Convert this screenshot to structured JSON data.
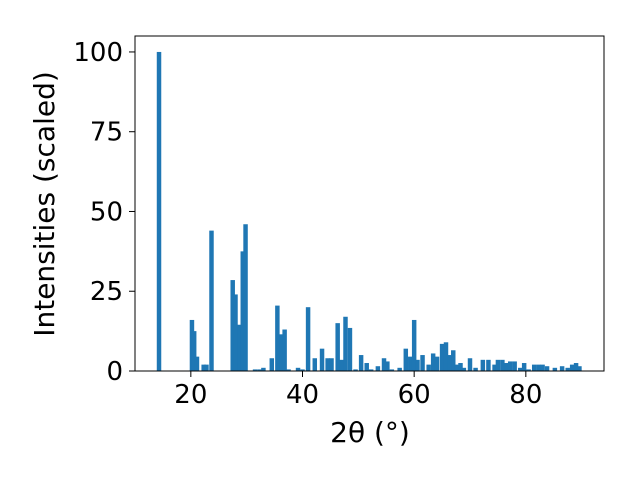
{
  "chart_data": {
    "type": "bar",
    "xlabel": "2θ (°)",
    "ylabel": "Intensities (scaled)",
    "xlim": [
      10,
      94
    ],
    "ylim": [
      0,
      105
    ],
    "xticks": [
      20,
      40,
      60,
      80
    ],
    "yticks": [
      0,
      25,
      50,
      75,
      100
    ],
    "grid": false,
    "bar_color": "#1f77b4",
    "bar_width": 0.8,
    "x": [
      14.3,
      20.2,
      20.6,
      21.1,
      22.3,
      22.8,
      23.7,
      27.5,
      28.0,
      28.7,
      29.3,
      29.8,
      31.5,
      32.3,
      33.0,
      34.5,
      35.5,
      36.2,
      36.8,
      37.5,
      39.2,
      40.0,
      41.0,
      42.2,
      43.5,
      44.5,
      45.2,
      46.3,
      47.0,
      47.7,
      48.5,
      49.5,
      50.5,
      51.5,
      52.3,
      53.5,
      54.6,
      55.2,
      56.0,
      57.4,
      58.5,
      59.3,
      60.0,
      60.6,
      61.5,
      62.6,
      63.4,
      64.1,
      65.0,
      65.7,
      66.3,
      67.0,
      67.6,
      68.3,
      68.9,
      70.0,
      71.0,
      72.3,
      73.3,
      74.4,
      75.0,
      75.8,
      76.5,
      77.2,
      78.0,
      79.0,
      79.7,
      80.5,
      81.5,
      82.3,
      83.0,
      83.8,
      85.2,
      86.5,
      87.5,
      88.3,
      89.0,
      89.6
    ],
    "values": [
      100,
      16,
      12.5,
      4.5,
      2,
      2,
      44,
      28.5,
      24,
      14.5,
      37.5,
      46,
      0.5,
      0.5,
      1,
      4,
      20.5,
      11.5,
      13,
      0.5,
      1,
      0.5,
      20,
      4,
      7,
      4,
      4,
      15,
      3.5,
      17,
      13.5,
      0.5,
      5,
      2.5,
      0.5,
      1.5,
      4,
      3,
      0.5,
      1,
      7,
      4.5,
      16,
      3.5,
      5,
      2,
      5.5,
      4.5,
      8.5,
      9,
      5,
      6.5,
      2,
      2.5,
      1,
      4,
      1,
      3.5,
      3.5,
      2,
      3.5,
      3.5,
      2.5,
      3,
      3,
      1,
      2.5,
      0.5,
      2,
      2,
      2,
      1.5,
      1,
      1.5,
      1,
      2,
      2.5,
      1.5
    ]
  }
}
